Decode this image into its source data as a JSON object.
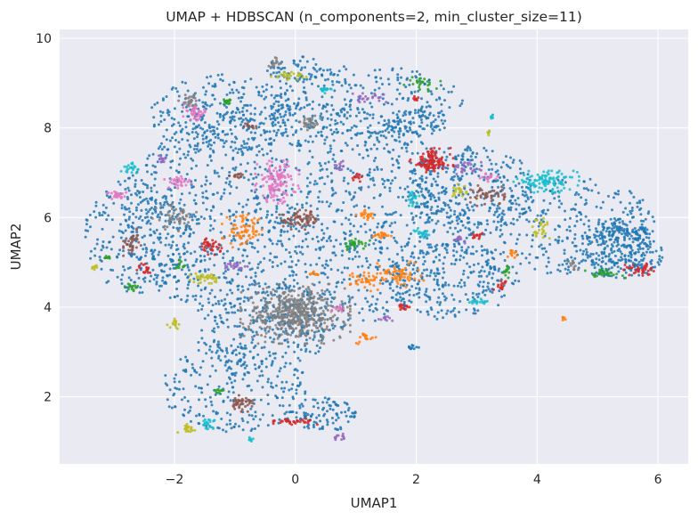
{
  "chart_data": {
    "type": "scatter",
    "title": "UMAP + HDBSCAN (n_components=2, min_cluster_size=11)",
    "xlabel": "UMAP1",
    "ylabel": "UMAP2",
    "xlim": [
      -3.9,
      6.5
    ],
    "ylim": [
      0.5,
      10.2
    ],
    "xticks": [
      -2,
      0,
      2,
      4,
      6
    ],
    "yticks": [
      2,
      4,
      6,
      8,
      10
    ],
    "xtick_labels": [
      "−2",
      "0",
      "2",
      "4",
      "6"
    ],
    "ytick_labels": [
      "2",
      "4",
      "6",
      "8",
      "10"
    ],
    "grid": true,
    "legend": "none",
    "background": "#eaeaf2",
    "palette": {
      "blue": "#1f77b4",
      "orange": "#ff7f0e",
      "green": "#2ca02c",
      "red": "#d62728",
      "purple": "#9467bd",
      "brown": "#8c564b",
      "pink": "#e377c2",
      "gray": "#7f7f7f",
      "olive": "#bcbd22",
      "cyan": "#17becf"
    },
    "noise_regions": [
      {
        "cx": 0.0,
        "cy": 6.0,
        "rx": 2.9,
        "ry": 2.6,
        "n": 1500
      },
      {
        "cx": -1.2,
        "cy": 8.3,
        "rx": 1.2,
        "ry": 0.9,
        "n": 260
      },
      {
        "cx": 1.2,
        "cy": 8.6,
        "rx": 1.6,
        "ry": 0.8,
        "n": 240
      },
      {
        "cx": 2.9,
        "cy": 6.6,
        "rx": 1.1,
        "ry": 1.0,
        "n": 320
      },
      {
        "cx": 2.6,
        "cy": 4.6,
        "rx": 1.1,
        "ry": 0.9,
        "n": 260
      },
      {
        "cx": 4.6,
        "cy": 5.8,
        "rx": 1.4,
        "ry": 1.1,
        "n": 280
      },
      {
        "cx": 5.4,
        "cy": 5.2,
        "rx": 0.7,
        "ry": 0.6,
        "n": 220
      },
      {
        "cx": -1.0,
        "cy": 2.2,
        "rx": 1.2,
        "ry": 1.0,
        "n": 260
      },
      {
        "cx": -0.5,
        "cy": 3.6,
        "rx": 1.2,
        "ry": 1.0,
        "n": 200
      },
      {
        "cx": -2.6,
        "cy": 5.6,
        "rx": 0.9,
        "ry": 1.3,
        "n": 240
      },
      {
        "cx": 0.4,
        "cy": 1.6,
        "rx": 0.6,
        "ry": 0.4,
        "n": 100
      },
      {
        "cx": 2.0,
        "cy": 8.1,
        "rx": 0.5,
        "ry": 0.3,
        "n": 80
      },
      {
        "cx": 0.0,
        "cy": 9.3,
        "rx": 0.5,
        "ry": 0.3,
        "n": 60
      }
    ],
    "clusters": [
      {
        "color": "gray",
        "cx": 0.0,
        "cy": 3.85,
        "rx": 0.75,
        "ry": 0.55,
        "n": 500
      },
      {
        "color": "pink",
        "cx": -0.3,
        "cy": 6.8,
        "rx": 0.3,
        "ry": 0.4,
        "n": 130
      },
      {
        "color": "red",
        "cx": 2.25,
        "cy": 7.25,
        "rx": 0.3,
        "ry": 0.25,
        "n": 110
      },
      {
        "color": "cyan",
        "cx": 4.15,
        "cy": 6.8,
        "rx": 0.45,
        "ry": 0.2,
        "n": 110
      },
      {
        "color": "blue",
        "cx": 5.4,
        "cy": 5.7,
        "rx": 0.45,
        "ry": 0.25,
        "n": 90
      },
      {
        "color": "orange",
        "cx": -0.85,
        "cy": 5.7,
        "rx": 0.3,
        "ry": 0.3,
        "n": 70
      },
      {
        "color": "brown",
        "cx": 0.1,
        "cy": 5.95,
        "rx": 0.3,
        "ry": 0.18,
        "n": 70
      },
      {
        "color": "pink",
        "cx": -1.65,
        "cy": 8.35,
        "rx": 0.17,
        "ry": 0.15,
        "n": 40
      },
      {
        "color": "gray",
        "cx": -1.75,
        "cy": 8.6,
        "rx": 0.15,
        "ry": 0.12,
        "n": 25
      },
      {
        "color": "gray",
        "cx": -2.0,
        "cy": 6.0,
        "rx": 0.3,
        "ry": 0.25,
        "n": 50
      },
      {
        "color": "brown",
        "cx": -2.7,
        "cy": 5.45,
        "rx": 0.12,
        "ry": 0.25,
        "n": 35
      },
      {
        "color": "red",
        "cx": -1.4,
        "cy": 5.35,
        "rx": 0.15,
        "ry": 0.15,
        "n": 35
      },
      {
        "color": "olive",
        "cx": -1.5,
        "cy": 4.65,
        "rx": 0.2,
        "ry": 0.1,
        "n": 35
      },
      {
        "color": "brown",
        "cx": -0.9,
        "cy": 1.85,
        "rx": 0.2,
        "ry": 0.15,
        "n": 40
      },
      {
        "color": "red",
        "cx": 0.0,
        "cy": 1.45,
        "rx": 0.3,
        "ry": 0.06,
        "n": 35
      },
      {
        "color": "cyan",
        "cx": -1.45,
        "cy": 1.4,
        "rx": 0.12,
        "ry": 0.1,
        "n": 25
      },
      {
        "color": "olive",
        "cx": -1.8,
        "cy": 1.3,
        "rx": 0.12,
        "ry": 0.08,
        "n": 20
      },
      {
        "color": "orange",
        "cx": 1.7,
        "cy": 4.75,
        "rx": 0.35,
        "ry": 0.25,
        "n": 60
      },
      {
        "color": "orange",
        "cx": 1.2,
        "cy": 4.6,
        "rx": 0.25,
        "ry": 0.2,
        "n": 40
      },
      {
        "color": "green",
        "cx": 1.0,
        "cy": 5.4,
        "rx": 0.2,
        "ry": 0.1,
        "n": 30
      },
      {
        "color": "orange",
        "cx": 1.15,
        "cy": 6.05,
        "rx": 0.12,
        "ry": 0.1,
        "n": 20
      },
      {
        "color": "orange",
        "cx": 1.45,
        "cy": 5.6,
        "rx": 0.15,
        "ry": 0.06,
        "n": 20
      },
      {
        "color": "cyan",
        "cx": 2.1,
        "cy": 5.65,
        "rx": 0.12,
        "ry": 0.12,
        "n": 20
      },
      {
        "color": "brown",
        "cx": 3.2,
        "cy": 6.5,
        "rx": 0.25,
        "ry": 0.2,
        "n": 45
      },
      {
        "color": "olive",
        "cx": 2.7,
        "cy": 6.6,
        "rx": 0.12,
        "ry": 0.12,
        "n": 20
      },
      {
        "color": "pink",
        "cx": 3.2,
        "cy": 6.9,
        "rx": 0.12,
        "ry": 0.08,
        "n": 18
      },
      {
        "color": "purple",
        "cx": 2.85,
        "cy": 7.1,
        "rx": 0.2,
        "ry": 0.15,
        "n": 25
      },
      {
        "color": "cyan",
        "cx": 1.95,
        "cy": 6.4,
        "rx": 0.1,
        "ry": 0.15,
        "n": 20
      },
      {
        "color": "pink",
        "cx": -2.95,
        "cy": 6.5,
        "rx": 0.15,
        "ry": 0.08,
        "n": 25
      },
      {
        "color": "cyan",
        "cx": -2.7,
        "cy": 7.1,
        "rx": 0.15,
        "ry": 0.1,
        "n": 22
      },
      {
        "color": "pink",
        "cx": -1.95,
        "cy": 6.8,
        "rx": 0.2,
        "ry": 0.12,
        "n": 30
      },
      {
        "color": "gray",
        "cx": 0.25,
        "cy": 8.1,
        "rx": 0.15,
        "ry": 0.15,
        "n": 30
      },
      {
        "color": "olive",
        "cx": -0.1,
        "cy": 9.15,
        "rx": 0.25,
        "ry": 0.08,
        "n": 25
      },
      {
        "color": "gray",
        "cx": -0.35,
        "cy": 9.45,
        "rx": 0.1,
        "ry": 0.1,
        "n": 15
      },
      {
        "color": "green",
        "cx": 2.1,
        "cy": 9.0,
        "rx": 0.25,
        "ry": 0.15,
        "n": 25
      },
      {
        "color": "purple",
        "cx": 1.2,
        "cy": 8.65,
        "rx": 0.25,
        "ry": 0.1,
        "n": 25
      },
      {
        "color": "cyan",
        "cx": 0.45,
        "cy": 8.85,
        "rx": 0.12,
        "ry": 0.06,
        "n": 15
      },
      {
        "color": "green",
        "cx": -1.1,
        "cy": 8.6,
        "rx": 0.12,
        "ry": 0.06,
        "n": 15
      },
      {
        "color": "purple",
        "cx": -1.0,
        "cy": 4.9,
        "rx": 0.2,
        "ry": 0.08,
        "n": 22
      },
      {
        "color": "green",
        "cx": -1.9,
        "cy": 4.95,
        "rx": 0.08,
        "ry": 0.08,
        "n": 12
      },
      {
        "color": "green",
        "cx": -2.7,
        "cy": 4.45,
        "rx": 0.1,
        "ry": 0.08,
        "n": 15
      },
      {
        "color": "red",
        "cx": -2.5,
        "cy": 4.85,
        "rx": 0.1,
        "ry": 0.12,
        "n": 18
      },
      {
        "color": "olive",
        "cx": -2.0,
        "cy": 3.65,
        "rx": 0.1,
        "ry": 0.12,
        "n": 15
      },
      {
        "color": "purple",
        "cx": -2.2,
        "cy": 7.3,
        "rx": 0.06,
        "ry": 0.1,
        "n": 12
      },
      {
        "color": "green",
        "cx": -3.1,
        "cy": 5.1,
        "rx": 0.08,
        "ry": 0.05,
        "n": 10
      },
      {
        "color": "red",
        "cx": 1.8,
        "cy": 4.0,
        "rx": 0.08,
        "ry": 0.1,
        "n": 14
      },
      {
        "color": "orange",
        "cx": 1.15,
        "cy": 3.3,
        "rx": 0.15,
        "ry": 0.1,
        "n": 18
      },
      {
        "color": "blue",
        "cx": 1.95,
        "cy": 3.1,
        "rx": 0.1,
        "ry": 0.05,
        "n": 12
      },
      {
        "color": "cyan",
        "cx": 3.05,
        "cy": 4.1,
        "rx": 0.15,
        "ry": 0.08,
        "n": 18
      },
      {
        "color": "red",
        "cx": 3.4,
        "cy": 4.5,
        "rx": 0.1,
        "ry": 0.1,
        "n": 15
      },
      {
        "color": "green",
        "cx": 3.5,
        "cy": 4.8,
        "rx": 0.08,
        "ry": 0.12,
        "n": 15
      },
      {
        "color": "olive",
        "cx": 4.05,
        "cy": 5.75,
        "rx": 0.15,
        "ry": 0.25,
        "n": 25
      },
      {
        "color": "red",
        "cx": 5.7,
        "cy": 4.85,
        "rx": 0.22,
        "ry": 0.12,
        "n": 35
      },
      {
        "color": "green",
        "cx": 5.1,
        "cy": 4.75,
        "rx": 0.3,
        "ry": 0.08,
        "n": 30
      },
      {
        "color": "gray",
        "cx": 4.6,
        "cy": 4.95,
        "rx": 0.08,
        "ry": 0.1,
        "n": 12
      },
      {
        "color": "pink",
        "cx": 0.7,
        "cy": 3.95,
        "rx": 0.1,
        "ry": 0.08,
        "n": 12
      },
      {
        "color": "purple",
        "cx": 0.75,
        "cy": 1.1,
        "rx": 0.1,
        "ry": 0.06,
        "n": 12
      },
      {
        "color": "cyan",
        "cx": -0.75,
        "cy": 1.05,
        "rx": 0.06,
        "ry": 0.05,
        "n": 10
      },
      {
        "color": "green",
        "cx": -1.25,
        "cy": 2.15,
        "rx": 0.08,
        "ry": 0.06,
        "n": 10
      },
      {
        "color": "red",
        "cx": 1.0,
        "cy": 6.9,
        "rx": 0.08,
        "ry": 0.08,
        "n": 12
      },
      {
        "color": "purple",
        "cx": 0.75,
        "cy": 7.15,
        "rx": 0.08,
        "ry": 0.1,
        "n": 12
      },
      {
        "color": "cyan",
        "cx": 3.25,
        "cy": 8.25,
        "rx": 0.03,
        "ry": 0.05,
        "n": 8
      },
      {
        "color": "olive",
        "cx": 3.2,
        "cy": 7.9,
        "rx": 0.03,
        "ry": 0.05,
        "n": 8
      },
      {
        "color": "orange",
        "cx": 4.45,
        "cy": 3.75,
        "rx": 0.03,
        "ry": 0.06,
        "n": 6
      },
      {
        "color": "olive",
        "cx": -3.3,
        "cy": 4.9,
        "rx": 0.05,
        "ry": 0.05,
        "n": 8
      },
      {
        "color": "brown",
        "cx": -0.75,
        "cy": 8.05,
        "rx": 0.15,
        "ry": 0.06,
        "n": 14
      },
      {
        "color": "brown",
        "cx": -0.95,
        "cy": 6.95,
        "rx": 0.12,
        "ry": 0.06,
        "n": 14
      },
      {
        "color": "orange",
        "cx": 3.6,
        "cy": 5.2,
        "rx": 0.08,
        "ry": 0.08,
        "n": 12
      },
      {
        "color": "red",
        "cx": 3.0,
        "cy": 5.6,
        "rx": 0.08,
        "ry": 0.06,
        "n": 12
      },
      {
        "color": "purple",
        "cx": 2.7,
        "cy": 5.5,
        "rx": 0.1,
        "ry": 0.06,
        "n": 12
      },
      {
        "color": "purple",
        "cx": 1.5,
        "cy": 3.75,
        "rx": 0.1,
        "ry": 0.05,
        "n": 12
      },
      {
        "color": "orange",
        "cx": 0.3,
        "cy": 4.75,
        "rx": 0.08,
        "ry": 0.05,
        "n": 10
      },
      {
        "color": "red",
        "cx": 2.0,
        "cy": 8.65,
        "rx": 0.05,
        "ry": 0.05,
        "n": 8
      }
    ]
  }
}
